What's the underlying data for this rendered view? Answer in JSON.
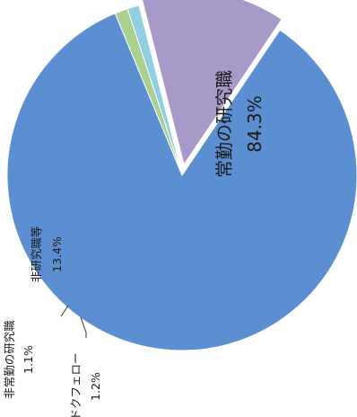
{
  "chart_data": {
    "type": "pie",
    "slices": [
      {
        "label": "常勤の研究職",
        "value_text": "84.3%",
        "value": 84.3,
        "color": "#5b8fd1"
      },
      {
        "label": "ドクフェロー",
        "value_text": "1.2%",
        "value": 1.2,
        "color": "#a9d08e"
      },
      {
        "label": "非常勤の研究職",
        "value_text": "1.1%",
        "value": 1.1,
        "color": "#8fcfe0"
      },
      {
        "label": "非研究職等",
        "value_text": "13.4%",
        "value": 13.4,
        "color": "#a79ac8"
      }
    ]
  }
}
